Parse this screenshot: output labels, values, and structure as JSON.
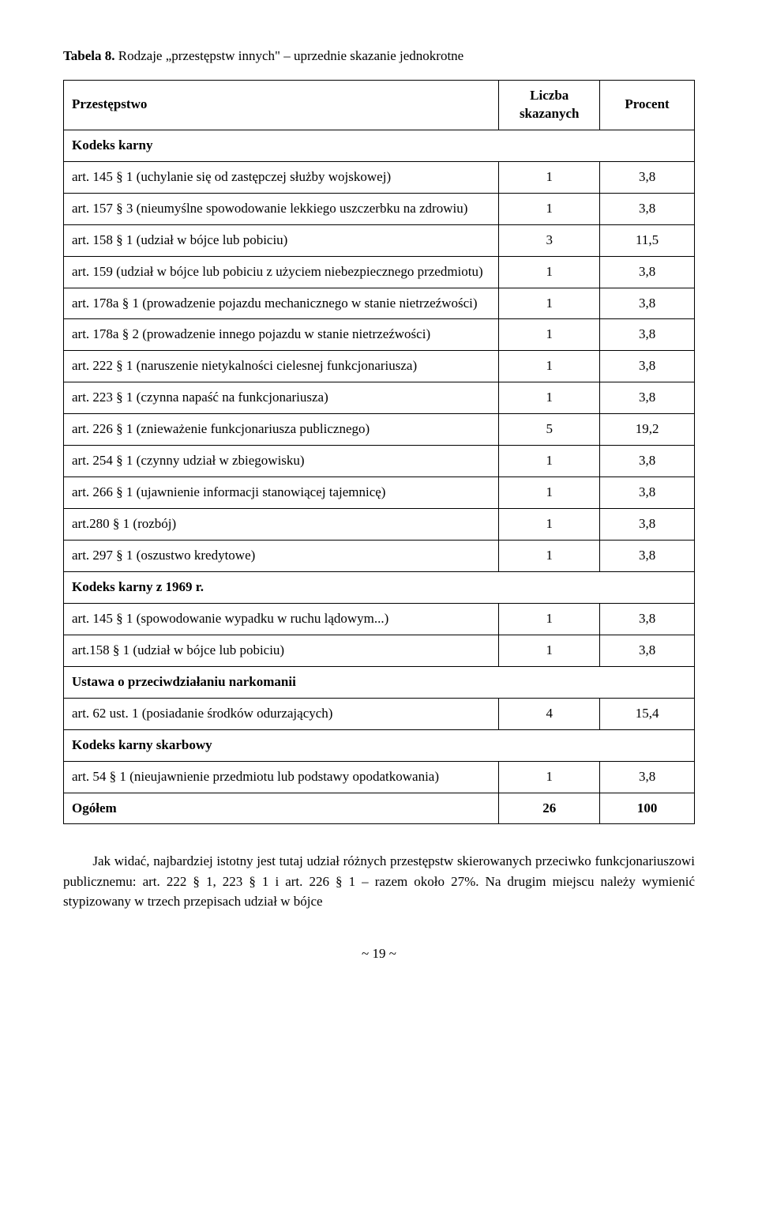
{
  "title_prefix": "Tabela 8.",
  "title_rest": " Rodzaje „przestępstw innych\" – uprzednie skazanie jednokrotne",
  "headers": {
    "col1": "Przestępstwo",
    "col2_line1": "Liczba",
    "col2_line2": "skazanych",
    "col3": "Procent"
  },
  "sections": [
    {
      "heading": "Kodeks karny",
      "rows": [
        {
          "label": "art. 145 § 1 (uchylanie się od zastępczej służby wojskowej)",
          "n": "1",
          "p": "3,8"
        },
        {
          "label": "art. 157 § 3 (nieumyślne spowodowanie lekkiego uszczerbku na zdrowiu)",
          "n": "1",
          "p": "3,8"
        },
        {
          "label": "art. 158 § 1 (udział w bójce lub pobiciu)",
          "n": "3",
          "p": "11,5"
        },
        {
          "label": "art. 159 (udział w bójce lub pobiciu z użyciem niebezpiecznego przedmiotu)",
          "n": "1",
          "p": "3,8"
        },
        {
          "label": "art. 178a § 1 (prowadzenie pojazdu mechanicznego w stanie nietrzeźwości)",
          "n": "1",
          "p": "3,8"
        },
        {
          "label": "art. 178a § 2 (prowadzenie innego pojazdu w stanie nietrzeźwości)",
          "n": "1",
          "p": "3,8"
        },
        {
          "label": "art. 222 § 1 (naruszenie nietykalności cielesnej funkcjonariusza)",
          "n": "1",
          "p": "3,8"
        },
        {
          "label": "art. 223 § 1 (czynna napaść na funkcjonariusza)",
          "n": "1",
          "p": "3,8"
        },
        {
          "label": "art. 226 § 1 (znieważenie funkcjonariusza publicznego)",
          "n": "5",
          "p": "19,2"
        },
        {
          "label": "art. 254 § 1 (czynny udział w zbiegowisku)",
          "n": "1",
          "p": "3,8"
        },
        {
          "label": "art. 266 § 1 (ujawnienie informacji stanowiącej tajemnicę)",
          "n": "1",
          "p": "3,8"
        },
        {
          "label": "art.280 § 1 (rozbój)",
          "n": "1",
          "p": "3,8"
        },
        {
          "label": "art. 297 § 1 (oszustwo kredytowe)",
          "n": "1",
          "p": "3,8"
        }
      ]
    },
    {
      "heading": "Kodeks karny z 1969 r.",
      "rows": [
        {
          "label": "art. 145 § 1 (spowodowanie wypadku w ruchu lądowym...)",
          "n": "1",
          "p": "3,8"
        },
        {
          "label": "art.158 § 1 (udział w bójce lub pobiciu)",
          "n": "1",
          "p": "3,8"
        }
      ]
    },
    {
      "heading": "Ustawa o przeciwdziałaniu narkomanii",
      "rows": [
        {
          "label": "art. 62 ust. 1 (posiadanie środków odurzających)",
          "n": "4",
          "p": "15,4"
        }
      ]
    },
    {
      "heading": "Kodeks karny skarbowy",
      "rows": [
        {
          "label": "art. 54 § 1 (nieujawnienie przedmiotu lub podstawy opodatkowania)",
          "n": "1",
          "p": "3,8"
        }
      ]
    }
  ],
  "total": {
    "label": "Ogółem",
    "n": "26",
    "p": "100"
  },
  "body_paragraph": "Jak widać, najbardziej istotny jest tutaj udział różnych przestępstw skierowanych przeciwko funkcjonariuszowi publicznemu: art. 222 § 1, 223 § 1 i art. 226 § 1 – razem około 27%. Na drugim miejscu należy wymienić stypizowany w trzech przepisach udział w bójce",
  "pager": "~ 19 ~"
}
